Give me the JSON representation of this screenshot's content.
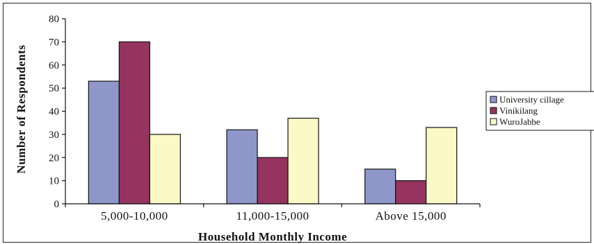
{
  "chart_data": {
    "type": "bar",
    "title": "",
    "xlabel": "Household Monthly Income",
    "ylabel": "Number of Respondents",
    "categories": [
      "5,000-10,000",
      "11,000-15,000",
      "Above 15,000"
    ],
    "series": [
      {
        "name": "University cillage",
        "values": [
          53,
          32,
          15
        ],
        "color": "#8f96c9"
      },
      {
        "name": "Vinikilang",
        "values": [
          70,
          20,
          10
        ],
        "color": "#953460"
      },
      {
        "name": "WuroJabbe",
        "values": [
          30,
          37,
          33
        ],
        "color": "#fbf9c6"
      }
    ],
    "ylim": [
      0,
      80
    ],
    "yticks": [
      0,
      10,
      20,
      30,
      40,
      50,
      60,
      70,
      80
    ],
    "grid": false,
    "legend_position": "right"
  }
}
